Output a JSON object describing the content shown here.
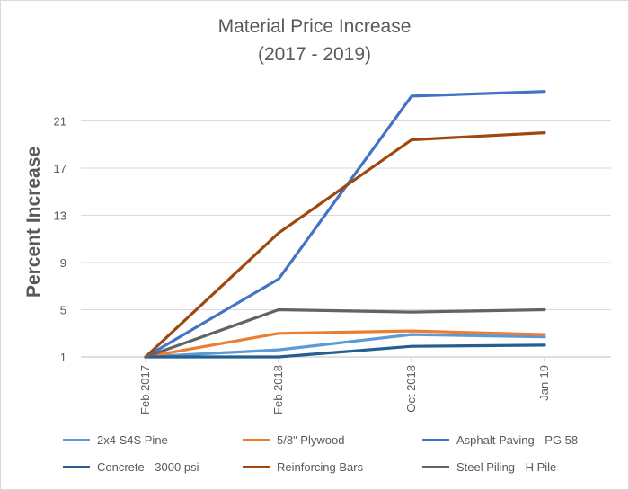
{
  "chart_data": {
    "type": "line",
    "title": "Material Price Increase",
    "subtitle": "(2017 - 2019)",
    "xlabel": "",
    "ylabel": "Percent Increase",
    "categories": [
      "Feb 2017",
      "Feb 2018",
      "Oct 2018",
      "Jan-19"
    ],
    "yticks": [
      1,
      5,
      9,
      13,
      17,
      21
    ],
    "ylim": [
      1,
      25
    ],
    "grid": true,
    "legend_position": "bottom",
    "series": [
      {
        "name": "2x4 S4S Pine",
        "color": "#5b9bd5",
        "values": [
          1,
          1.6,
          2.9,
          2.7
        ]
      },
      {
        "name": "5/8\" Plywood",
        "color": "#ed7d31",
        "values": [
          1,
          3.0,
          3.2,
          2.9
        ]
      },
      {
        "name": "Asphalt Paving - PG 58",
        "color": "#4472c4",
        "values": [
          1,
          7.6,
          23.1,
          23.5
        ]
      },
      {
        "name": "Concrete - 3000 psi",
        "color": "#255e91",
        "values": [
          1,
          1.0,
          1.9,
          2.0
        ]
      },
      {
        "name": "Reinforcing Bars",
        "color": "#9e480e",
        "values": [
          1,
          11.5,
          19.4,
          20.0
        ]
      },
      {
        "name": "Steel Piling - H Pile",
        "color": "#636363",
        "values": [
          1,
          5.0,
          4.8,
          5.0
        ]
      }
    ]
  }
}
